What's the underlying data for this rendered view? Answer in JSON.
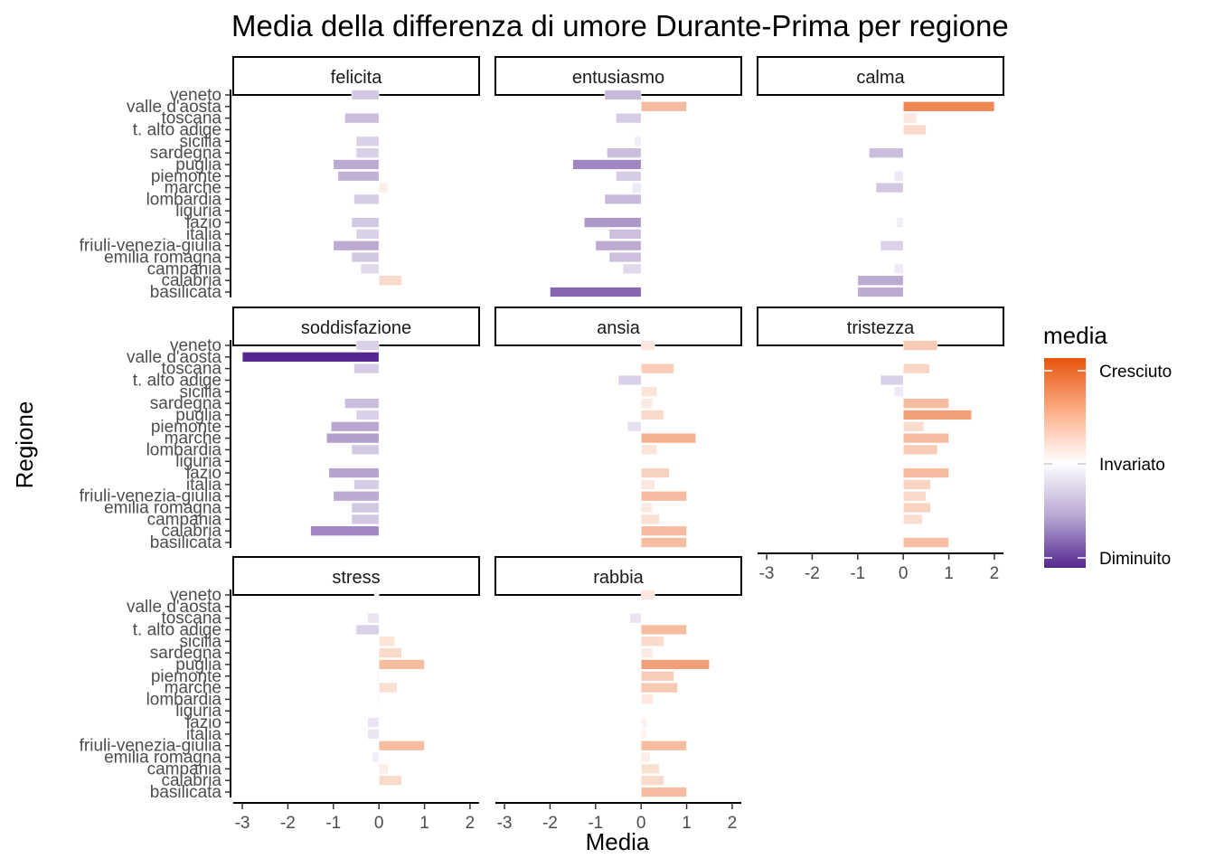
{
  "chart_data": {
    "type": "bar",
    "orientation": "horizontal",
    "title": "Media della differenza di umore Durante-Prima per regione",
    "xlabel": "Media",
    "ylabel": "Regione",
    "xlim": [
      -3.2,
      2.2
    ],
    "x_ticks": [
      "-3",
      "-2",
      "-1",
      "0",
      "1",
      "2"
    ],
    "x_tick_values": [
      -3,
      -2,
      -1,
      0,
      1,
      2
    ],
    "categories": [
      "veneto",
      "valle d'aosta",
      "toscana",
      "t. alto adige",
      "sicilia",
      "sardegna",
      "puglia",
      "piemonte",
      "marche",
      "lombardia",
      "liguria",
      "lazio",
      "italia",
      "friuli-venezia-giulia",
      "emilia romagna",
      "campania",
      "calabria",
      "basilicata"
    ],
    "facets": [
      {
        "name": "felicita",
        "values": [
          -0.6,
          null,
          -0.75,
          null,
          -0.5,
          -0.5,
          -1.0,
          -0.9,
          0.2,
          -0.55,
          null,
          -0.6,
          -0.5,
          -1.0,
          -0.6,
          -0.4,
          0.5,
          null
        ]
      },
      {
        "name": "entusiasmo",
        "values": [
          -0.8,
          1.0,
          -0.55,
          null,
          -0.15,
          -0.75,
          -1.5,
          -0.55,
          -0.2,
          -0.8,
          null,
          -1.25,
          -0.7,
          -1.0,
          -0.7,
          -0.4,
          null,
          -2.0
        ]
      },
      {
        "name": "calma",
        "values": [
          null,
          2.0,
          0.3,
          0.5,
          null,
          -0.75,
          null,
          -0.2,
          -0.6,
          null,
          null,
          -0.15,
          null,
          -0.5,
          null,
          -0.2,
          -1.0,
          -1.0
        ]
      },
      {
        "name": "soddisfazione",
        "values": [
          -0.5,
          -3.0,
          -0.55,
          null,
          null,
          -0.75,
          -0.5,
          -1.05,
          -1.15,
          -0.6,
          null,
          -1.1,
          -0.55,
          -1.0,
          -0.6,
          -0.6,
          -1.5,
          null
        ]
      },
      {
        "name": "ansia",
        "values": [
          0.3,
          null,
          0.72,
          -0.5,
          0.35,
          0.25,
          0.5,
          -0.3,
          1.2,
          0.35,
          null,
          0.62,
          0.3,
          1.0,
          0.25,
          0.4,
          1.0,
          1.0
        ]
      },
      {
        "name": "tristezza",
        "values": [
          0.75,
          null,
          0.58,
          -0.5,
          -0.2,
          1.0,
          1.5,
          0.45,
          1.0,
          0.75,
          null,
          1.0,
          0.6,
          0.5,
          0.6,
          0.42,
          null,
          1.0
        ]
      },
      {
        "name": "stress",
        "values": [
          -0.1,
          null,
          -0.25,
          -0.5,
          0.35,
          0.5,
          1.0,
          -0.05,
          0.4,
          -0.05,
          null,
          -0.25,
          -0.25,
          1.0,
          -0.15,
          0.2,
          0.5,
          null
        ]
      },
      {
        "name": "rabbia",
        "values": [
          0.3,
          null,
          -0.25,
          1.0,
          0.5,
          0.25,
          1.5,
          0.72,
          0.8,
          0.27,
          null,
          0.12,
          0.12,
          1.0,
          0.2,
          0.4,
          0.5,
          1.0
        ]
      }
    ],
    "legend": {
      "title": "media",
      "placement": "right",
      "labels": [
        "Cresciuto",
        "Invariato",
        "Diminuito"
      ],
      "colors": {
        "high": "#e6550d",
        "mid": "#ffffff",
        "low": "#54278f"
      }
    },
    "grid": false
  }
}
